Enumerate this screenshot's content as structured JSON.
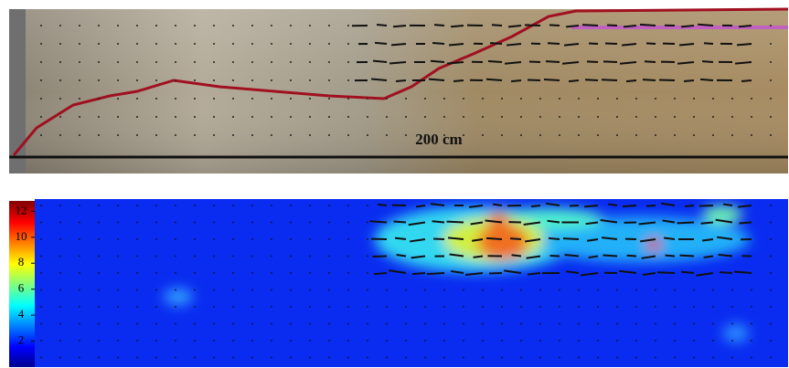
{
  "photo": {
    "scale_label": "200 cm"
  },
  "velocity_map": {
    "colorbar": {
      "range": [
        0,
        12.8
      ],
      "ticks": [
        2,
        4,
        6,
        8,
        10,
        12
      ]
    }
  }
}
